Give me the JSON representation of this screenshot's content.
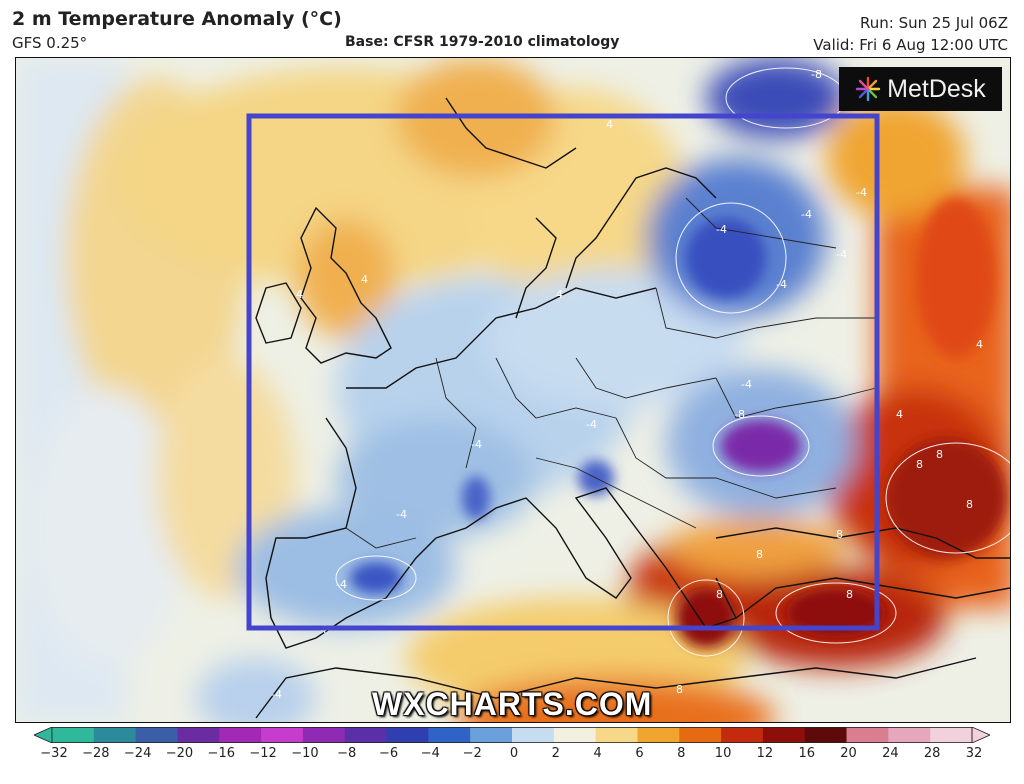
{
  "header": {
    "title": "2 m Temperature Anomaly (°C)",
    "model": "GFS 0.25°",
    "base": "Base: CFSR 1979-2010 climatology",
    "run": "Run: Sun 25 Jul 06Z",
    "valid": "Valid: Fri 6 Aug 12:00 UTC"
  },
  "logo": {
    "text": "MetDesk"
  },
  "watermark": "WXCHARTS.COM",
  "colorbar": {
    "ticks": [
      "−32",
      "−28",
      "−24",
      "−20",
      "−16",
      "−12",
      "−10",
      "−8",
      "−6",
      "−4",
      "−2",
      "0",
      "2",
      "4",
      "6",
      "8",
      "10",
      "12",
      "16",
      "20",
      "24",
      "28",
      "32"
    ],
    "colors": [
      "#2fb99a",
      "#2d8a9c",
      "#3a5fa8",
      "#6a2ca0",
      "#a129b5",
      "#c63ccc",
      "#8e2ab4",
      "#5b2fa8",
      "#2f3fb0",
      "#2f63c6",
      "#6aa0dc",
      "#c6dcf0",
      "#f2f0de",
      "#f6d888",
      "#f0a530",
      "#e66a12",
      "#c42a0e",
      "#8e0e0a",
      "#5e0a0a",
      "#d87e8e",
      "#e6a6bc",
      "#f2d0dc"
    ]
  },
  "contour_labels": [
    "-8",
    "-4",
    "-4",
    "-4",
    "-4",
    "-4",
    "-4",
    "-8",
    "-4",
    "-4",
    "-4",
    "-4",
    "4",
    "4",
    "4",
    "4",
    "4",
    "4",
    "8",
    "8",
    "8",
    "8",
    "8",
    "8",
    "8",
    "8",
    "-4",
    "-4"
  ],
  "colors": {
    "highlight_box": "#4444cc"
  }
}
